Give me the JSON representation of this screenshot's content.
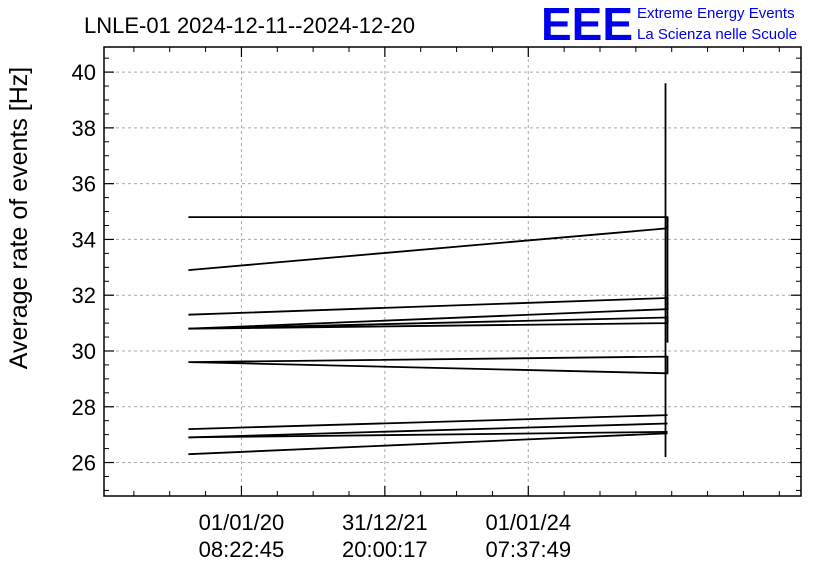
{
  "chart_data": {
    "type": "line",
    "title": "LNLE-01 2024-12-11--2024-12-20",
    "xlabel": "",
    "ylabel": "Average rate of events [Hz]",
    "ylim": [
      24.8,
      40.9
    ],
    "yticks": [
      26,
      28,
      30,
      32,
      34,
      36,
      38,
      40
    ],
    "x_axis": {
      "range_days": [
        -700,
        2850
      ],
      "ticks": [
        {
          "day": 0,
          "line1": "01/01/20",
          "line2": "08:22:45"
        },
        {
          "day": 730.5,
          "line1": "31/12/21",
          "line2": "20:00:17"
        },
        {
          "day": 1461,
          "line1": "01/01/24",
          "line2": "07:37:49"
        }
      ]
    },
    "grid": true,
    "legend": "none",
    "series": [
      {
        "x": [
          -270,
          2170,
          2170,
          -270
        ],
        "y": [
          34.8,
          34.8,
          34.4,
          32.9
        ]
      },
      {
        "x": [
          -270,
          2170,
          2170,
          -270
        ],
        "y": [
          31.3,
          31.9,
          31.5,
          30.8
        ]
      },
      {
        "x": [
          -270,
          2170,
          2170,
          -270
        ],
        "y": [
          30.8,
          31.2,
          31.0,
          30.8
        ]
      },
      {
        "x": [
          -270,
          2170,
          2170,
          -270
        ],
        "y": [
          29.6,
          29.8,
          29.2,
          29.6
        ]
      },
      {
        "x": [
          -270,
          2170
        ],
        "y": [
          27.2,
          27.7
        ]
      },
      {
        "x": [
          -270,
          2170
        ],
        "y": [
          26.9,
          27.4
        ]
      },
      {
        "x": [
          -270,
          2170
        ],
        "y": [
          26.9,
          27.1
        ]
      },
      {
        "x": [
          -270,
          2170
        ],
        "y": [
          26.3,
          27.05
        ]
      },
      {
        "x": [
          2160,
          2160
        ],
        "y": [
          39.6,
          26.2
        ]
      },
      {
        "x": [
          2170,
          2170
        ],
        "y": [
          34.8,
          30.3
        ]
      }
    ],
    "colors": {
      "line": "#000000",
      "grid": "#aaaaaa",
      "logo": "#0000ee"
    }
  },
  "logo": {
    "mark": "EEE",
    "line1": "Extreme Energy Events",
    "line2": "La Scienza nelle Scuole"
  }
}
